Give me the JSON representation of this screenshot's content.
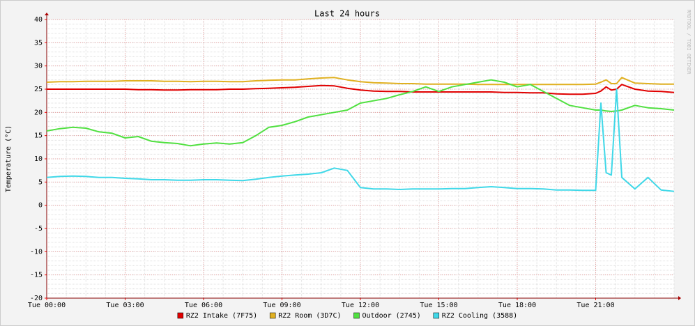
{
  "chart_data": {
    "type": "line",
    "title": "Last 24 hours",
    "y_label": "Temperature (°C)",
    "watermark": "RRDTOOL / TOBI OETIKER",
    "grid": true,
    "legend": "bottom",
    "xlim": [
      0,
      24
    ],
    "xticks": [
      {
        "value": 0,
        "label": "Tue 00:00"
      },
      {
        "value": 3,
        "label": "Tue 03:00"
      },
      {
        "value": 6,
        "label": "Tue 06:00"
      },
      {
        "value": 9,
        "label": "Tue 09:00"
      },
      {
        "value": 12,
        "label": "Tue 12:00"
      },
      {
        "value": 15,
        "label": "Tue 15:00"
      },
      {
        "value": 18,
        "label": "Tue 18:00"
      },
      {
        "value": 21,
        "label": "Tue 21:00"
      }
    ],
    "ylim": [
      -20,
      40
    ],
    "yticks": [
      -20,
      -15,
      -10,
      -5,
      0,
      5,
      10,
      15,
      20,
      25,
      30,
      35,
      40
    ],
    "x": [
      0,
      0.5,
      1,
      1.5,
      2,
      2.5,
      3,
      3.5,
      4,
      4.5,
      5,
      5.5,
      6,
      6.5,
      7,
      7.5,
      8,
      8.5,
      9,
      9.5,
      10,
      10.5,
      11,
      11.5,
      12,
      12.5,
      13,
      13.5,
      14,
      14.5,
      15,
      15.5,
      16,
      16.5,
      17,
      17.5,
      18,
      18.5,
      19,
      19.5,
      20,
      20.5,
      21,
      21.2,
      21.4,
      21.6,
      21.8,
      22,
      22.5,
      23,
      23.5,
      24
    ],
    "series": [
      {
        "name": "RZ2 Intake (7F75)",
        "color": "#e00000",
        "values": [
          25,
          25,
          25,
          25,
          25,
          25,
          25,
          24.9,
          24.9,
          24.8,
          24.8,
          24.9,
          24.9,
          24.9,
          25,
          25,
          25.1,
          25.2,
          25.3,
          25.4,
          25.6,
          25.8,
          25.7,
          25.2,
          24.8,
          24.6,
          24.5,
          24.5,
          24.4,
          24.4,
          24.4,
          24.4,
          24.4,
          24.4,
          24.4,
          24.3,
          24.3,
          24.2,
          24.2,
          24,
          23.9,
          23.9,
          24.1,
          24.6,
          25.5,
          24.8,
          25,
          26,
          25,
          24.6,
          24.5,
          24.3
        ]
      },
      {
        "name": "RZ2 Room (3D7C)",
        "color": "#e0b020",
        "values": [
          26.5,
          26.6,
          26.6,
          26.7,
          26.7,
          26.7,
          26.8,
          26.8,
          26.8,
          26.7,
          26.7,
          26.6,
          26.7,
          26.7,
          26.6,
          26.6,
          26.8,
          26.9,
          27,
          27,
          27.2,
          27.4,
          27.5,
          27,
          26.6,
          26.4,
          26.3,
          26.2,
          26.2,
          26.1,
          26.1,
          26.1,
          26.1,
          26,
          26,
          26,
          26,
          26,
          26,
          26,
          26,
          26,
          26.1,
          26.5,
          27,
          26.2,
          26.2,
          27.5,
          26.3,
          26.2,
          26.1,
          26.1
        ]
      },
      {
        "name": "Outdoor (2745)",
        "color": "#50e040",
        "values": [
          16,
          16.5,
          16.8,
          16.6,
          15.8,
          15.5,
          14.5,
          14.8,
          13.8,
          13.5,
          13.3,
          12.8,
          13.2,
          13.4,
          13.2,
          13.5,
          15,
          16.8,
          17.2,
          18,
          19,
          19.5,
          20,
          20.5,
          22,
          22.5,
          23,
          23.8,
          24.5,
          25.5,
          24.5,
          25.5,
          26,
          26.5,
          27,
          26.5,
          25.5,
          26,
          24.5,
          23,
          21.5,
          21,
          20.5,
          20.5,
          20.3,
          20.2,
          20.3,
          20.5,
          21.5,
          21,
          20.8,
          20.5
        ]
      },
      {
        "name": "RZ2 Cooling (3588)",
        "color": "#40d8e8",
        "values": [
          6,
          6.2,
          6.3,
          6.2,
          6,
          6,
          5.8,
          5.7,
          5.5,
          5.5,
          5.4,
          5.4,
          5.5,
          5.5,
          5.4,
          5.3,
          5.6,
          6,
          6.3,
          6.5,
          6.7,
          7,
          8,
          7.5,
          3.8,
          3.5,
          3.5,
          3.4,
          3.5,
          3.5,
          3.5,
          3.6,
          3.6,
          3.8,
          4,
          3.8,
          3.6,
          3.6,
          3.5,
          3.3,
          3.3,
          3.2,
          3.2,
          22,
          7,
          6.5,
          25,
          6,
          3.5,
          6,
          3.3,
          3
        ]
      }
    ]
  }
}
